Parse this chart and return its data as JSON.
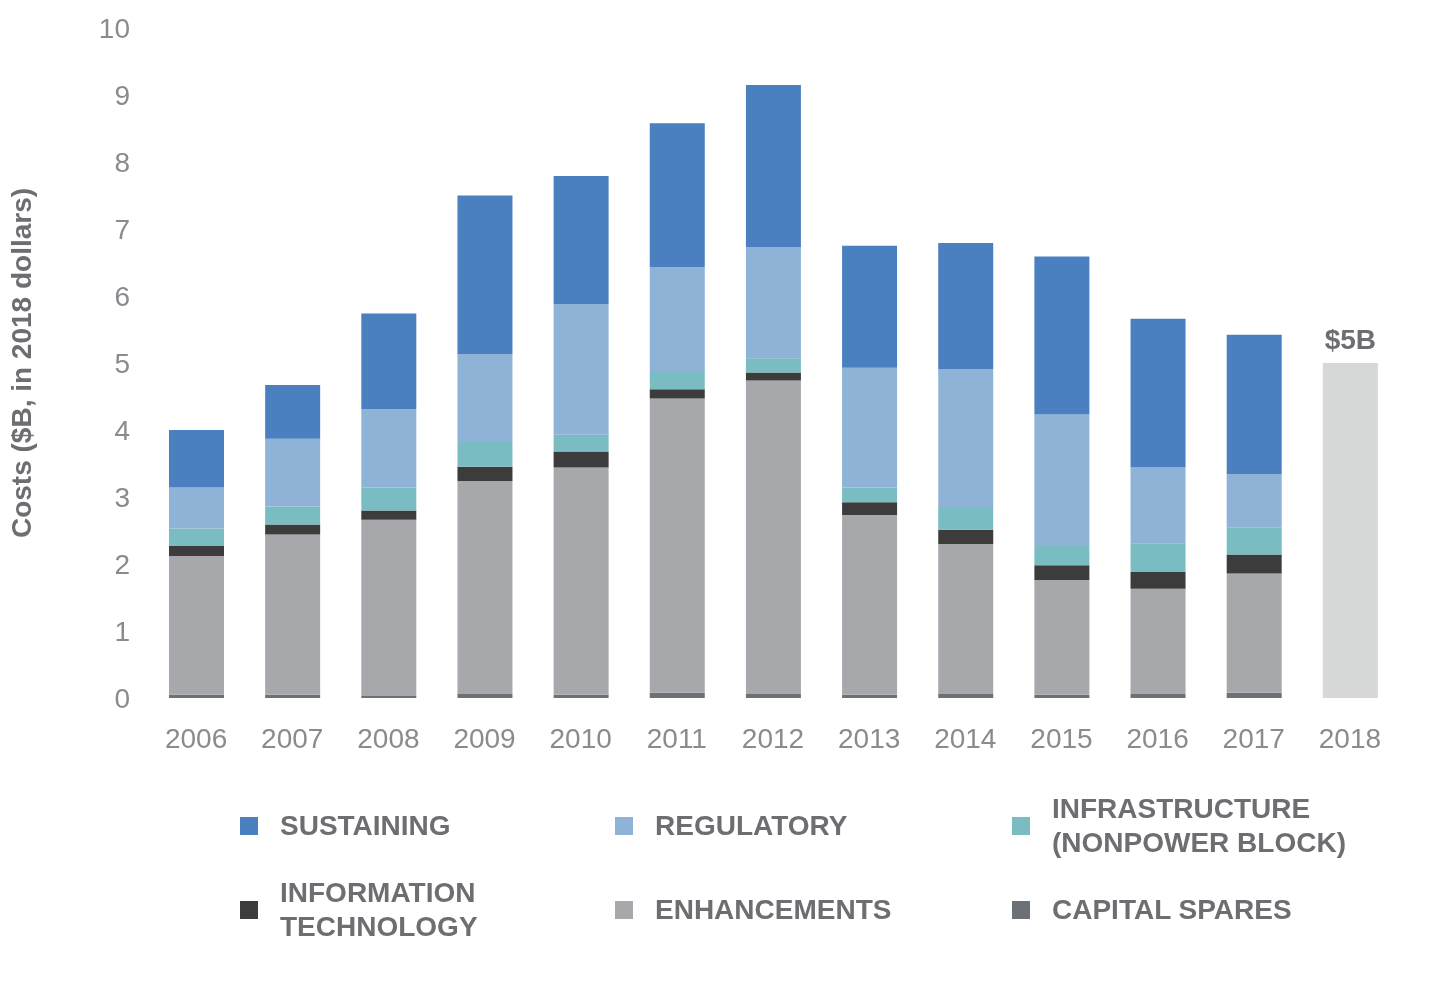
{
  "chart_data": {
    "type": "bar",
    "stacked": true,
    "ylabel": "Costs ($B, in 2018 dollars)",
    "categories": [
      "2006",
      "2007",
      "2008",
      "2009",
      "2010",
      "2011",
      "2012",
      "2013",
      "2014",
      "2015",
      "2016",
      "2017",
      "2018"
    ],
    "ylim": [
      0,
      10
    ],
    "yticks": [
      0,
      1,
      2,
      3,
      4,
      5,
      6,
      7,
      8,
      9,
      10
    ],
    "legend": "bottom",
    "series": [
      {
        "name": "CAPITAL SPARES",
        "color": "#6c7178",
        "values": [
          0.05,
          0.05,
          0.03,
          0.06,
          0.05,
          0.08,
          0.06,
          0.05,
          0.06,
          0.05,
          0.06,
          0.08,
          null
        ]
      },
      {
        "name": "ENHANCEMENTS",
        "color": "#a7a8ab",
        "values": [
          2.07,
          2.39,
          2.63,
          3.18,
          3.39,
          4.39,
          4.68,
          2.68,
          2.24,
          1.71,
          1.57,
          1.78,
          null
        ]
      },
      {
        "name": "INFORMATION TECHNOLOGY",
        "color": "#3c3c3c",
        "values": [
          0.15,
          0.15,
          0.14,
          0.21,
          0.24,
          0.14,
          0.12,
          0.19,
          0.21,
          0.22,
          0.25,
          0.28,
          null
        ]
      },
      {
        "name": "INFRASTRUCTURE (NONPOWER BLOCK)",
        "color": "#79bdc2",
        "values": [
          0.26,
          0.27,
          0.34,
          0.37,
          0.25,
          0.27,
          0.21,
          0.22,
          0.34,
          0.29,
          0.43,
          0.4,
          null
        ]
      },
      {
        "name": "REGULATORY",
        "color": "#8fb2d7",
        "values": [
          0.61,
          1.01,
          1.17,
          1.31,
          1.95,
          1.55,
          1.66,
          1.79,
          2.06,
          1.96,
          1.13,
          0.8,
          null
        ]
      },
      {
        "name": "SUSTAINING",
        "color": "#4a80c0",
        "values": [
          0.86,
          0.8,
          1.43,
          2.37,
          1.91,
          2.15,
          2.42,
          1.82,
          1.88,
          2.36,
          2.22,
          2.08,
          null
        ]
      },
      {
        "color": "#d6d7d7",
        "values": [
          null,
          null,
          null,
          null,
          null,
          null,
          null,
          null,
          null,
          null,
          null,
          null,
          5
        ],
        "value_labels": [
          null,
          null,
          null,
          null,
          null,
          null,
          null,
          null,
          null,
          null,
          null,
          null,
          "$5B"
        ]
      }
    ]
  }
}
